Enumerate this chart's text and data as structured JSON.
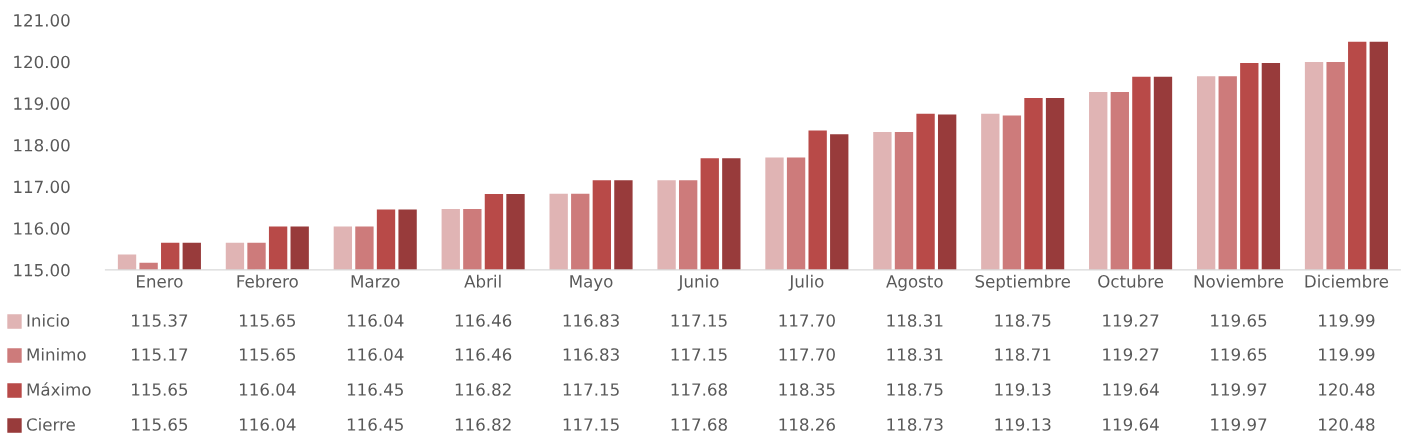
{
  "chart_data": {
    "type": "bar",
    "categories": [
      "Enero",
      "Febrero",
      "Marzo",
      "Abril",
      "Mayo",
      "Junio",
      "Julio",
      "Agosto",
      "Septiembre",
      "Octubre",
      "Noviembre",
      "Diciembre"
    ],
    "series": [
      {
        "name": "Inicio",
        "color": "#e0b4b4",
        "values": [
          115.37,
          115.65,
          116.04,
          116.46,
          116.83,
          117.15,
          117.7,
          118.31,
          118.75,
          119.27,
          119.65,
          119.99
        ],
        "value_labels": [
          "115.37",
          "115.65",
          "116.04",
          "116.46",
          "116.83",
          "117.15",
          "117.70",
          "118.31",
          "118.75",
          "119.27",
          "119.65",
          "119.99"
        ]
      },
      {
        "name": "Minimo",
        "color": "#cd7b7b",
        "values": [
          115.17,
          115.65,
          116.04,
          116.46,
          116.83,
          117.15,
          117.7,
          118.31,
          118.71,
          119.27,
          119.65,
          119.99
        ],
        "value_labels": [
          "115.17",
          "115.65",
          "116.04",
          "116.46",
          "116.83",
          "117.15",
          "117.70",
          "118.31",
          "118.71",
          "119.27",
          "119.65",
          "119.99"
        ]
      },
      {
        "name": "Máximo",
        "color": "#b84a48",
        "values": [
          115.65,
          116.04,
          116.45,
          116.82,
          117.15,
          117.68,
          118.35,
          118.75,
          119.13,
          119.64,
          119.97,
          120.48
        ],
        "value_labels": [
          "115.65",
          "116.04",
          "116.45",
          "116.82",
          "117.15",
          "117.68",
          "118.35",
          "118.75",
          "119.13",
          "119.64",
          "119.97",
          "120.48"
        ]
      },
      {
        "name": "Cierre",
        "color": "#983b3b",
        "values": [
          115.65,
          116.04,
          116.45,
          116.82,
          117.15,
          117.68,
          118.26,
          118.73,
          119.13,
          119.64,
          119.97,
          120.48
        ],
        "value_labels": [
          "115.65",
          "116.04",
          "116.45",
          "116.82",
          "117.15",
          "117.68",
          "118.26",
          "118.73",
          "119.13",
          "119.64",
          "119.97",
          "120.48"
        ]
      }
    ],
    "ylim": [
      115,
      121
    ],
    "yticks": [
      {
        "value": 115,
        "label": "115.00"
      },
      {
        "value": 116,
        "label": "116.00"
      },
      {
        "value": 117,
        "label": "117.00"
      },
      {
        "value": 118,
        "label": "118.00"
      },
      {
        "value": 119,
        "label": "119.00"
      },
      {
        "value": 120,
        "label": "120.00"
      },
      {
        "value": 121,
        "label": "121.00"
      }
    ],
    "grid": false,
    "legend": "bottom"
  }
}
